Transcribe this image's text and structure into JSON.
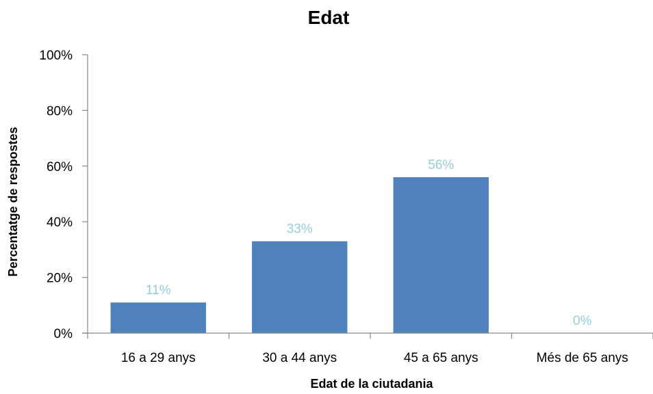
{
  "chart_data": {
    "type": "bar",
    "title": "Edat",
    "xlabel": "Edat de la ciutadania",
    "ylabel": "Percentatge de respostes",
    "categories": [
      "16 a 29 anys",
      "30 a 44 anys",
      "45 a 65 anys",
      "Més de 65 anys"
    ],
    "values": [
      11,
      33,
      56,
      0
    ],
    "data_labels": [
      "11%",
      "33%",
      "56%",
      "0%"
    ],
    "ylim": [
      0,
      100
    ],
    "yticks": [
      0,
      20,
      40,
      60,
      80,
      100
    ],
    "ytick_labels": [
      "0%",
      "20%",
      "40%",
      "60%",
      "80%",
      "100%"
    ],
    "grid": false,
    "legend": "none",
    "colors": {
      "bar": "#4F81BD",
      "data_label": "#93CDDD",
      "axis": "#868686"
    }
  }
}
